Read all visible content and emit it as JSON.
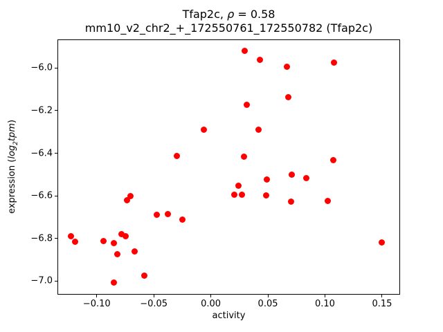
{
  "figure": {
    "title_line1": {
      "prefix": "Tfap2c, ",
      "rho": "ρ",
      "suffix": " = 0.58"
    },
    "title_line2": "mm10_v2_chr2_+_172550761_172550782 (Tfap2c)",
    "xlabel": "activity",
    "ylabel": {
      "prefix": "expression (",
      "log": "log",
      "sub": "2",
      "tpm": "tpm",
      "suffix": ")"
    }
  },
  "chart_data": {
    "type": "scatter",
    "title": "Tfap2c, ρ = 0.58",
    "subtitle": "mm10_v2_chr2_+_172550761_172550782 (Tfap2c)",
    "xlabel": "activity",
    "ylabel": "expression (log2 tpm)",
    "legend": "none",
    "grid": false,
    "marker_color": "#ff0000",
    "marker_diameter_px": 9,
    "xlim": [
      -0.1344,
      0.1646
    ],
    "ylim": [
      -7.057,
      -5.866
    ],
    "x_ticks": [
      {
        "value": -0.1,
        "label": "−0.10"
      },
      {
        "value": -0.05,
        "label": "−0.05"
      },
      {
        "value": 0.0,
        "label": "0.00"
      },
      {
        "value": 0.05,
        "label": "0.05"
      },
      {
        "value": 0.1,
        "label": "0.10"
      },
      {
        "value": 0.15,
        "label": "0.15"
      }
    ],
    "y_ticks": [
      {
        "value": -6.0,
        "label": "−6.0"
      },
      {
        "value": -6.2,
        "label": "−6.2"
      },
      {
        "value": -6.4,
        "label": "−6.4"
      },
      {
        "value": -6.6,
        "label": "−6.6"
      },
      {
        "value": -6.8,
        "label": "−6.8"
      },
      {
        "value": -7.0,
        "label": "−7.0"
      }
    ],
    "points": [
      [
        0.0297,
        -5.92
      ],
      [
        0.043,
        -5.962
      ],
      [
        0.0666,
        -5.995
      ],
      [
        0.1076,
        -5.975
      ],
      [
        0.0678,
        -6.137
      ],
      [
        0.0315,
        -6.172
      ],
      [
        0.0418,
        -6.289
      ],
      [
        -0.0059,
        -6.289
      ],
      [
        -0.0295,
        -6.412
      ],
      [
        0.0291,
        -6.415
      ],
      [
        0.107,
        -6.431
      ],
      [
        0.0708,
        -6.501
      ],
      [
        0.0836,
        -6.516
      ],
      [
        0.0489,
        -6.524
      ],
      [
        0.0243,
        -6.553
      ],
      [
        0.0207,
        -6.596
      ],
      [
        0.0275,
        -6.596
      ],
      [
        0.0484,
        -6.599
      ],
      [
        0.0702,
        -6.627
      ],
      [
        0.1026,
        -6.623
      ],
      [
        -0.0703,
        -6.601
      ],
      [
        -0.0737,
        -6.621
      ],
      [
        -0.0377,
        -6.684
      ],
      [
        -0.0472,
        -6.689
      ],
      [
        -0.0251,
        -6.712
      ],
      [
        -0.0782,
        -6.779
      ],
      [
        -0.1225,
        -6.788
      ],
      [
        -0.0748,
        -6.788
      ],
      [
        -0.1187,
        -6.816
      ],
      [
        -0.0941,
        -6.812
      ],
      [
        -0.0852,
        -6.823
      ],
      [
        -0.0667,
        -6.86
      ],
      [
        -0.0821,
        -6.875
      ],
      [
        -0.058,
        -6.975
      ],
      [
        -0.0848,
        -7.007
      ],
      [
        0.1495,
        -6.817
      ]
    ]
  }
}
